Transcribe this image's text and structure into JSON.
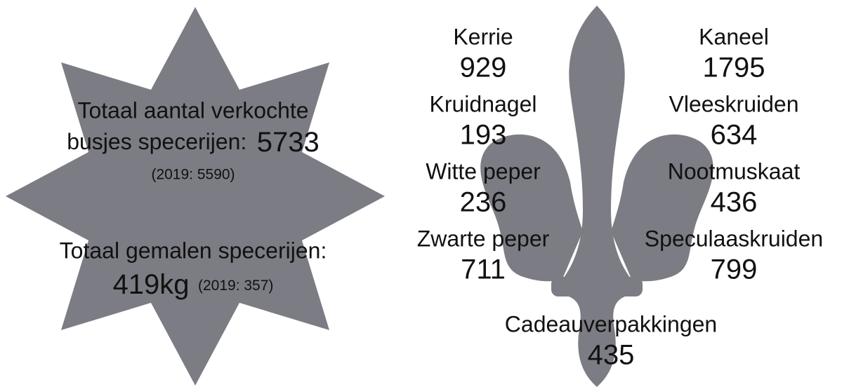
{
  "star": {
    "sold_line1": "Totaal aantal verkochte",
    "sold_line2": "busjes specerijen:",
    "sold_value": 5733,
    "sold_previous": "(2019: 5590)",
    "ground_label": "Totaal gemalen specerijen:",
    "ground_value": "419kg",
    "ground_previous": "(2019: 357)"
  },
  "spices": [
    {
      "label": "Kerrie",
      "value": 929
    },
    {
      "label": "Kaneel",
      "value": 1795
    },
    {
      "label": "Kruidnagel",
      "value": 193
    },
    {
      "label": "Vleeskruiden",
      "value": 634
    },
    {
      "label": "Witte peper",
      "value": 236
    },
    {
      "label": "Nootmuskaat",
      "value": 436
    },
    {
      "label": "Zwarte peper",
      "value": 711
    },
    {
      "label": "Speculaaskruiden",
      "value": 799
    },
    {
      "label": "Cadeauverpakkingen",
      "value": 435
    }
  ]
}
